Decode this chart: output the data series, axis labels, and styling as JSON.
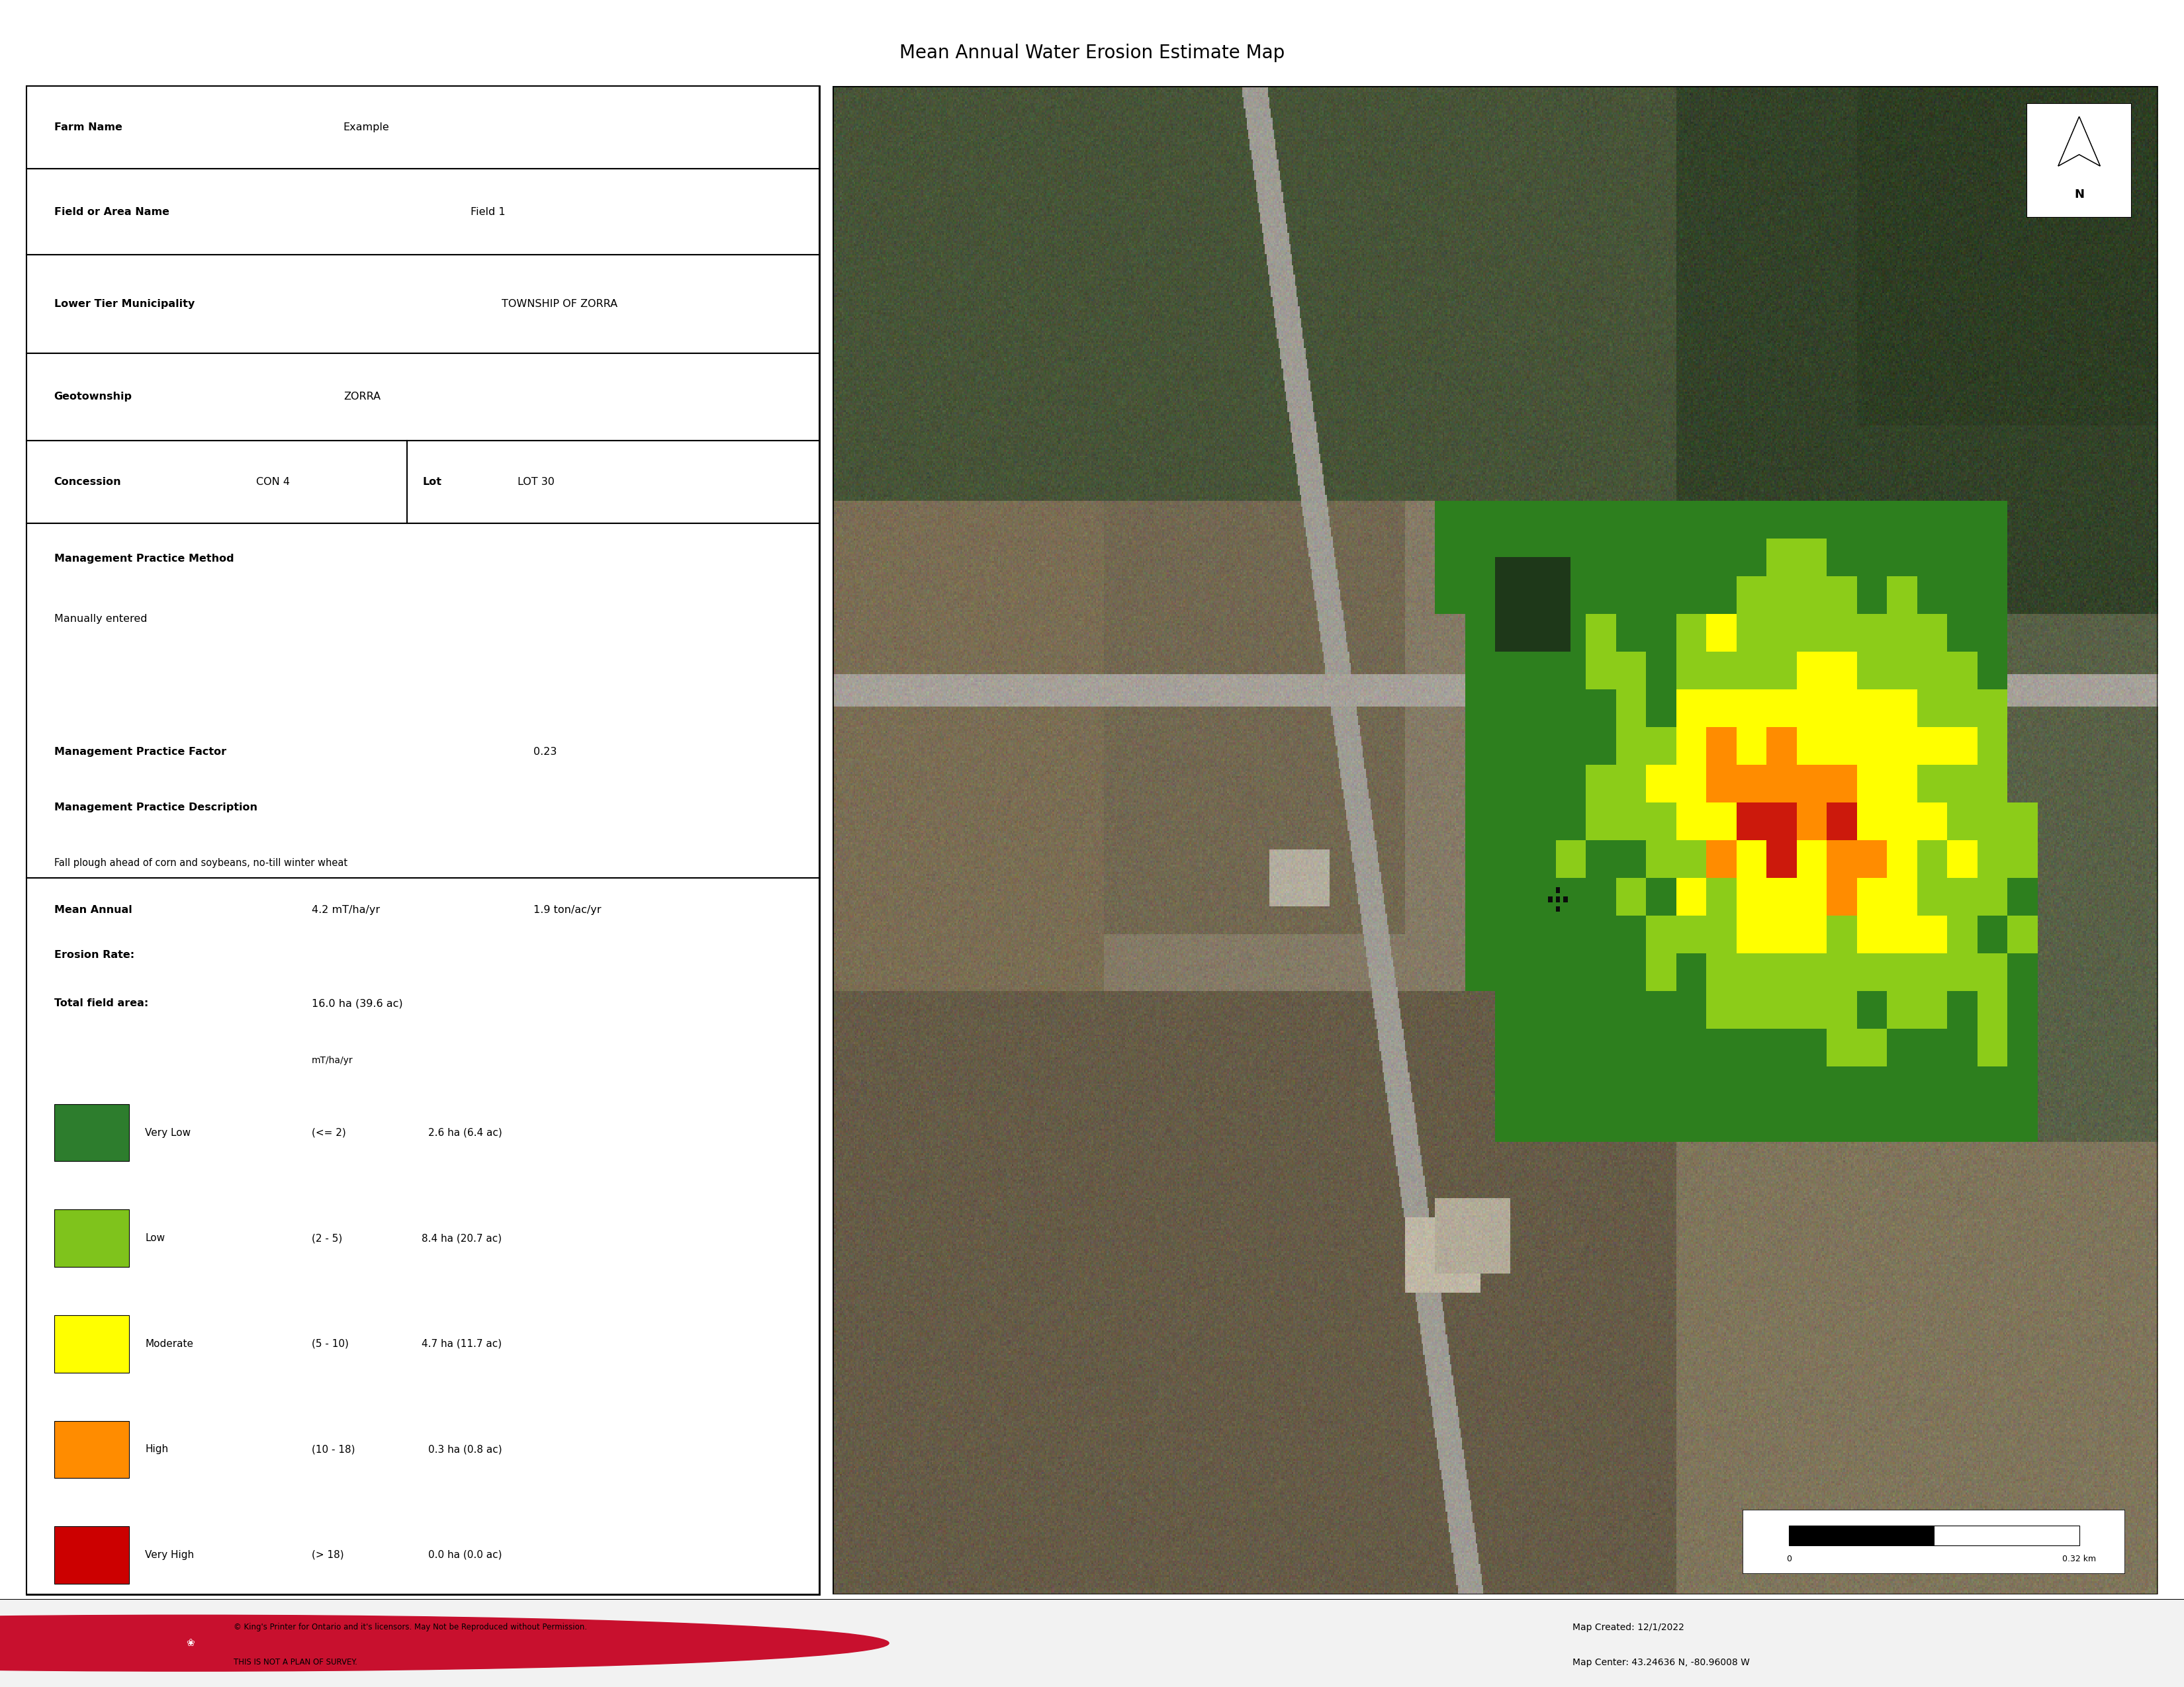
{
  "title": "Mean Annual Water Erosion Estimate Map",
  "title_fontsize": 20,
  "farm_name": "Example",
  "field_name": "Field 1",
  "municipality": "TOWNSHIP OF ZORRA",
  "geotownship": "ZORRA",
  "concession": "CON 4",
  "lot": "LOT 30",
  "mgmt_method": "Manually entered",
  "mgmt_factor": "0.23",
  "mgmt_description": "Fall plough ahead of corn and soybeans, no-till winter wheat",
  "mean_annual_erosion_mt": "4.2 mT/ha/yr",
  "mean_annual_erosion_ton": "1.9 ton/ac/yr",
  "total_field_area": "16.0 ha (39.6 ac)",
  "legend_categories": [
    "Very Low",
    "Low",
    "Moderate",
    "High",
    "Very High"
  ],
  "legend_ranges": [
    "(<= 2)",
    "(2 - 5)",
    "(5 - 10)",
    "(10 - 18)",
    "(> 18)"
  ],
  "legend_areas": [
    "2.6 ha (6.4 ac)",
    "8.4 ha (20.7 ac)",
    "4.7 ha (11.7 ac)",
    "0.3 ha (0.8 ac)",
    "0.0 ha (0.0 ac)"
  ],
  "legend_colors": [
    "#2d7d2d",
    "#7fc31c",
    "#ffff00",
    "#ff8c00",
    "#cc0000"
  ],
  "map_created": "Map Created: 12/1/2022",
  "map_center": "Map Center: 43.24636 N, -80.96008 W",
  "copyright_line1": "© King's Printer for Ontario and it's licensors. May Not be Reproduced without Permission.",
  "copyright_line2": "THIS IS NOT A PLAN OF SURVEY.",
  "bg_color": "#ffffff",
  "footer_bg": "#f2f2f2"
}
